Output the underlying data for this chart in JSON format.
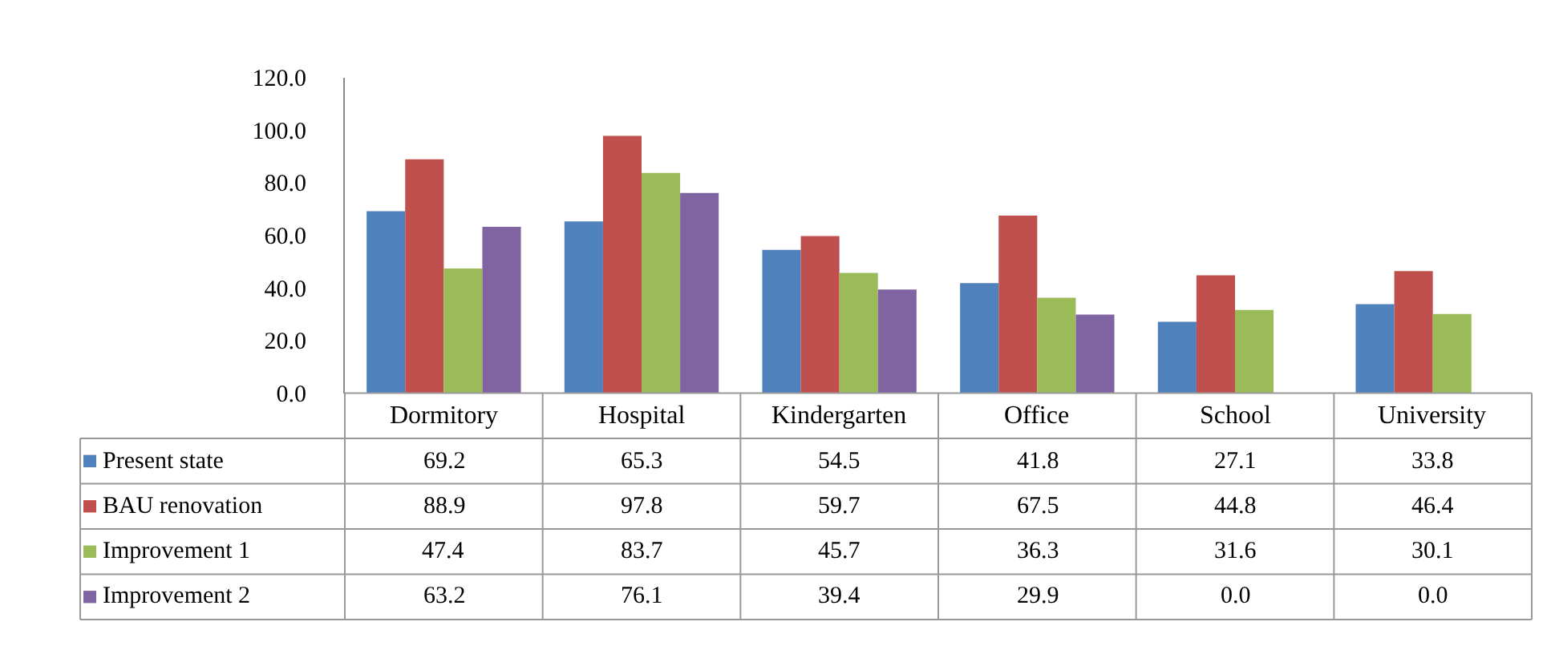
{
  "chart_data": {
    "type": "bar",
    "categories": [
      "Dormitory",
      "Hospital",
      "Kindergarten",
      "Office",
      "School",
      "University"
    ],
    "series": [
      {
        "name": "Present state",
        "color": "#4f81bd",
        "values": [
          69.2,
          65.3,
          54.5,
          41.8,
          27.1,
          33.8
        ],
        "value_labels": [
          "69.2",
          "65.3",
          "54.5",
          "41.8",
          "27.1",
          "33.8"
        ]
      },
      {
        "name": "BAU renovation",
        "color": "#c0504d",
        "values": [
          88.9,
          97.8,
          59.7,
          67.5,
          44.8,
          46.4
        ],
        "value_labels": [
          "88.9",
          "97.8",
          "59.7",
          "67.5",
          "44.8",
          "46.4"
        ]
      },
      {
        "name": "Improvement 1",
        "color": "#9bbb59",
        "values": [
          47.4,
          83.7,
          45.7,
          36.3,
          31.6,
          30.1
        ],
        "value_labels": [
          "47.4",
          "83.7",
          "45.7",
          "36.3",
          "31.6",
          "30.1"
        ]
      },
      {
        "name": "Improvement 2",
        "color": "#8064a2",
        "values": [
          63.2,
          76.1,
          39.4,
          29.9,
          0.0,
          0.0
        ],
        "value_labels": [
          "63.2",
          "76.1",
          "39.4",
          "29.9",
          "0.0",
          "0.0"
        ]
      }
    ],
    "ylim": [
      0,
      120
    ],
    "yticks": [
      {
        "value": 0,
        "label": "0.0"
      },
      {
        "value": 20,
        "label": "20.0"
      },
      {
        "value": 40,
        "label": "40.0"
      },
      {
        "value": 60,
        "label": "60.0"
      },
      {
        "value": 80,
        "label": "80.0"
      },
      {
        "value": 100,
        "label": "100.0"
      },
      {
        "value": 120,
        "label": "120.0"
      }
    ],
    "legend": "bottom left"
  }
}
